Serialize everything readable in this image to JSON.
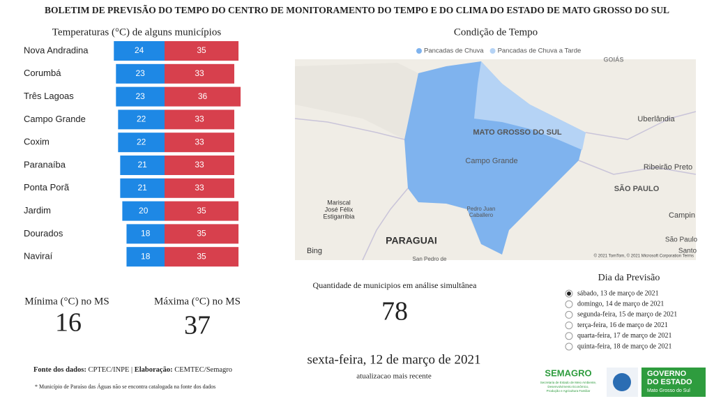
{
  "header": {
    "title": "BOLETIM DE PREVISÃO DO TEMPO DO CENTRO DE MONITORAMENTO DO TEMPO E DO CLIMA DO ESTADO DE MATO GROSSO DO SUL"
  },
  "chart_data": {
    "type": "bar",
    "title": "Temperaturas (°C) de alguns municípios",
    "categories": [
      "Nova Andradina",
      "Corumbá",
      "Três Lagoas",
      "Campo Grande",
      "Coxim",
      "Paranaíba",
      "Ponta Porã",
      "Jardim",
      "Dourados",
      "Naviraí"
    ],
    "series": [
      {
        "color": "#1e88e5",
        "values": [
          24,
          23,
          23,
          22,
          22,
          21,
          21,
          20,
          18,
          18
        ]
      },
      {
        "color": "#d7404d",
        "values": [
          35,
          33,
          36,
          33,
          33,
          33,
          33,
          35,
          35,
          35
        ]
      }
    ]
  },
  "map": {
    "title": "Condição de Tempo",
    "legend": [
      {
        "label": "Pancadas de Chuva",
        "color": "#7fb3ee"
      },
      {
        "label": "Pancadas de Chuva a Tarde",
        "color": "#b5d3f5"
      }
    ],
    "labels": [
      "GOIÁS",
      "Uberlândia",
      "MATO GROSSO DO SUL",
      "Campo Grande",
      "Ribeirão Preto",
      "SÃO PAULO",
      "Mariscal",
      "José Félix",
      "Estigarribia",
      "PARAGUAI",
      "Pedro Juan",
      "Caballero",
      "Campin",
      "São Paulo",
      "Santo",
      "San Pedro de"
    ],
    "brand": "Bing",
    "attribution": "© 2021 TomTom, © 2021 Microsoft Corporation  Terms"
  },
  "kpis": {
    "min": {
      "label": "Mínima (°C) no MS",
      "value": 16
    },
    "max": {
      "label": "Máxima (°C) no MS",
      "value": 37
    },
    "count": {
      "label": "Quantidade de municipios em análise simultânea",
      "value": 78
    }
  },
  "forecast": {
    "title": "Dia da Previsão",
    "options": [
      "sábado, 13 de março de 2021",
      "domingo, 14 de março de 2021",
      "segunda-feira, 15 de março de 2021",
      "terça-feira, 16 de março de 2021",
      "quarta-feira, 17 de março de 2021",
      "quinta-feira, 18 de março de 2021"
    ],
    "selected": 0
  },
  "update": {
    "date": "sexta-feira, 12 de março de 2021",
    "caption": "atualizacao mais recente"
  },
  "footer": {
    "source": [
      "Fonte dos dados:",
      " CPTEC/INPE | ",
      "Elaboração:",
      " CEMTEC/Semagro"
    ],
    "note": "* Município de Paraíso das Águas não se encontra catalogada na fonte dos dados"
  },
  "logos": {
    "semagro": "SEMAGRO",
    "semagro_sub": [
      "Secretaria de Estado de Meio Ambiente,",
      "Desenvolvimento Econômico,",
      "Produção e Agricultura Familiar"
    ],
    "gov": [
      "GOVERNO",
      "DO ESTADO",
      "Mato Grosso do Sul"
    ]
  }
}
